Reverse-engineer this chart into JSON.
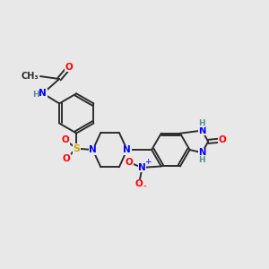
{
  "bg_color": "#e8e8e8",
  "bond_color": "#2d2d2d",
  "atom_colors": {
    "O": "#ff0000",
    "N": "#0000ff",
    "S": "#ccaa00",
    "H": "#5a9090",
    "C": "#2d2d2d"
  },
  "fig_width": 3.0,
  "fig_height": 3.0,
  "dpi": 100
}
